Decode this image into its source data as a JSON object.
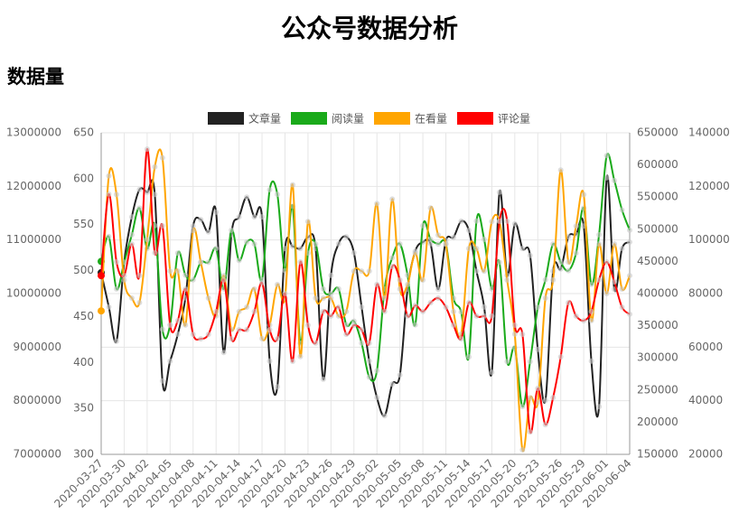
{
  "title": "公众号数据分析",
  "section": "数据量",
  "chart_data": {
    "type": "line",
    "categories": [
      "2020-03-27",
      null,
      null,
      "2020-03-30",
      null,
      null,
      "2020-04-02",
      null,
      null,
      "2020-04-05",
      null,
      null,
      "2020-04-08",
      null,
      null,
      "2020-04-11",
      null,
      null,
      "2020-04-14",
      null,
      null,
      "2020-04-17",
      null,
      null,
      "2020-04-20",
      null,
      null,
      "2020-04-23",
      null,
      null,
      "2020-04-26",
      null,
      null,
      "2020-04-29",
      null,
      null,
      "2020-05-02",
      null,
      null,
      "2020-05-05",
      null,
      null,
      "2020-05-08",
      null,
      null,
      "2020-05-11",
      null,
      null,
      "2020-05-14",
      null,
      null,
      "2020-05-17",
      null,
      null,
      "2020-05-20",
      null,
      null,
      "2020-05-23",
      null,
      null,
      "2020-05-26",
      null,
      null,
      "2020-05-29",
      null,
      null,
      "2020-06-01",
      null,
      null,
      "2020-06-04"
    ],
    "ylim": [
      7000000,
      13000000
    ],
    "yticks": [
      7000000,
      8000000,
      9000000,
      10000000,
      11000000,
      12000000,
      13000000
    ],
    "y2lim": [
      300,
      650
    ],
    "y2ticks": [
      300,
      350,
      400,
      450,
      500,
      550,
      600,
      650
    ],
    "y3lim": [
      150000,
      650000
    ],
    "y3ticks": [
      150000,
      200000,
      250000,
      300000,
      350000,
      400000,
      450000,
      500000,
      550000,
      600000,
      650000
    ],
    "y4lim": [
      20000,
      140000
    ],
    "y4ticks": [
      20000,
      40000,
      60000,
      80000,
      100000,
      120000,
      140000
    ],
    "grid": true,
    "series": [
      {
        "name": "文章量",
        "color": "#222222",
        "axis": "y",
        "values": [
          10390000,
          9750000,
          9110000,
          10590000,
          11430000,
          11940000,
          11890000,
          11850000,
          8370000,
          8740000,
          9240000,
          9920000,
          11260000,
          11380000,
          11150000,
          11520000,
          8900000,
          11100000,
          11430000,
          11800000,
          11430000,
          11430000,
          8740000,
          8260000,
          10840000,
          10880000,
          10840000,
          11050000,
          10840000,
          8400000,
          10340000,
          10930000,
          11060000,
          10760000,
          9750000,
          8740000,
          8060000,
          7720000,
          8310000,
          8480000,
          10080000,
          10790000,
          10960000,
          10930000,
          10080000,
          10990000,
          11050000,
          11350000,
          11180000,
          10420000,
          9750000,
          8530000,
          11890000,
          10340000,
          11300000,
          10840000,
          10710000,
          8960000,
          8010000,
          10420000,
          10460000,
          11060000,
          11100000,
          11260000,
          8740000,
          7890000,
          12160000,
          10080000,
          10840000,
          10960000
        ]
      },
      {
        "name": "阅读量",
        "color": "#1aaa1a",
        "axis": "y2",
        "values": [
          510,
          537,
          480,
          509,
          539,
          568,
          524,
          549,
          436,
          441,
          519,
          495,
          490,
          509,
          509,
          524,
          480,
          544,
          511,
          531,
          529,
          490,
          588,
          583,
          500,
          570,
          421,
          519,
          529,
          480,
          475,
          480,
          441,
          445,
          421,
          384,
          391,
          480,
          514,
          529,
          495,
          441,
          549,
          534,
          529,
          529,
          470,
          455,
          406,
          554,
          534,
          480,
          509,
          401,
          416,
          352,
          401,
          460,
          490,
          529,
          509,
          500,
          519,
          568,
          485,
          539,
          625,
          598,
          566,
          544
        ]
      },
      {
        "name": "在看量",
        "color": "#ffa500",
        "axis": "y3",
        "values": [
          373000,
          583000,
          554000,
          421000,
          393000,
          386000,
          484000,
          597000,
          611000,
          435000,
          435000,
          351000,
          498000,
          449000,
          393000,
          365000,
          428000,
          344000,
          372000,
          379000,
          407000,
          330000,
          351000,
          414000,
          393000,
          569000,
          302000,
          512000,
          393000,
          393000,
          393000,
          365000,
          372000,
          435000,
          435000,
          435000,
          540000,
          393000,
          547000,
          407000,
          414000,
          463000,
          421000,
          533000,
          491000,
          477000,
          372000,
          337000,
          470000,
          470000,
          435000,
          512000,
          512000,
          421000,
          337000,
          157000,
          238000,
          231000,
          393000,
          421000,
          592000,
          449000,
          505000,
          554000,
          358000,
          477000,
          400000,
          477000,
          407000,
          428000
        ]
      },
      {
        "name": "评论量",
        "color": "#ff0000",
        "axis": "y4",
        "values": [
          86700,
          117100,
          91800,
          86700,
          98500,
          86700,
          133900,
          95200,
          105300,
          68200,
          69900,
          81700,
          64800,
          63100,
          64800,
          73300,
          85100,
          63100,
          66500,
          66500,
          73300,
          84000,
          66500,
          63100,
          80000,
          54700,
          91800,
          68200,
          61500,
          73300,
          71600,
          74900,
          64800,
          68200,
          66500,
          61500,
          83400,
          73300,
          90100,
          85100,
          71600,
          75600,
          73300,
          76600,
          78300,
          74900,
          68200,
          63100,
          76600,
          71600,
          71600,
          71600,
          107000,
          107000,
          68200,
          64800,
          28400,
          44600,
          31100,
          41200,
          56400,
          76600,
          71600,
          69900,
          73300,
          85100,
          91800,
          84400,
          74900,
          72300
        ]
      }
    ]
  }
}
